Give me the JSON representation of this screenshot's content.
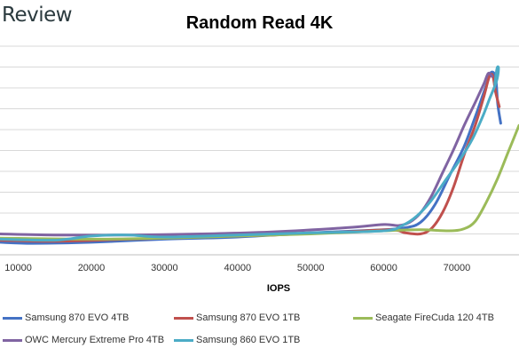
{
  "brand": {
    "logo_text": "Review"
  },
  "chart_data": {
    "type": "line",
    "title": "Random Read 4K",
    "xlabel": "IOPS",
    "ylabel": "",
    "xlim": [
      7500,
      78500
    ],
    "ylim": [
      0,
      10
    ],
    "x_ticks": [
      10000,
      20000,
      30000,
      40000,
      50000,
      60000,
      70000
    ],
    "y_tick_labels": [],
    "grid": {
      "horizontal": true,
      "vertical": false
    },
    "legend_position": "bottom",
    "series": [
      {
        "name": "Samsung 870 EVO 4TB",
        "color": "#4472c4",
        "points": [
          [
            7500,
            0.6
          ],
          [
            12000,
            0.55
          ],
          [
            20000,
            0.6
          ],
          [
            30000,
            0.75
          ],
          [
            40000,
            0.85
          ],
          [
            50000,
            1.05
          ],
          [
            60000,
            1.2
          ],
          [
            63000,
            1.3
          ],
          [
            65000,
            1.55
          ],
          [
            67000,
            2.4
          ],
          [
            69000,
            3.8
          ],
          [
            71000,
            5.2
          ],
          [
            72500,
            6.6
          ],
          [
            73500,
            7.6
          ],
          [
            74200,
            8.3
          ],
          [
            74700,
            8.75
          ],
          [
            75300,
            8.5
          ],
          [
            75600,
            7.2
          ],
          [
            76000,
            6.3
          ]
        ]
      },
      {
        "name": "Samsung 870 EVO 1TB",
        "color": "#c0504d",
        "points": [
          [
            7500,
            0.7
          ],
          [
            15000,
            0.65
          ],
          [
            25000,
            0.75
          ],
          [
            35000,
            0.85
          ],
          [
            45000,
            0.95
          ],
          [
            55000,
            1.1
          ],
          [
            61000,
            1.2
          ],
          [
            63000,
            1.05
          ],
          [
            65000,
            1.0
          ],
          [
            66500,
            1.25
          ],
          [
            68000,
            2.0
          ],
          [
            69500,
            3.2
          ],
          [
            71000,
            4.8
          ],
          [
            72500,
            6.2
          ],
          [
            73700,
            7.6
          ],
          [
            74400,
            8.5
          ],
          [
            74900,
            8.6
          ],
          [
            75300,
            7.8
          ],
          [
            75800,
            7.1
          ]
        ]
      },
      {
        "name": "Seagate FireCuda 120 4TB",
        "color": "#9bbb59",
        "points": [
          [
            7500,
            0.8
          ],
          [
            20000,
            0.75
          ],
          [
            30000,
            0.8
          ],
          [
            40000,
            0.9
          ],
          [
            50000,
            1.0
          ],
          [
            60000,
            1.15
          ],
          [
            65000,
            1.2
          ],
          [
            69000,
            1.15
          ],
          [
            71000,
            1.25
          ],
          [
            72500,
            1.6
          ],
          [
            74000,
            2.5
          ],
          [
            75500,
            3.6
          ],
          [
            77000,
            4.9
          ],
          [
            78500,
            6.2
          ]
        ]
      },
      {
        "name": "OWC Mercury Extreme Pro 4TB",
        "color": "#8064a2",
        "points": [
          [
            7500,
            1.0
          ],
          [
            15000,
            0.95
          ],
          [
            25000,
            0.95
          ],
          [
            35000,
            1.0
          ],
          [
            45000,
            1.1
          ],
          [
            55000,
            1.3
          ],
          [
            60000,
            1.45
          ],
          [
            62000,
            1.4
          ],
          [
            63500,
            1.55
          ],
          [
            65000,
            2.0
          ],
          [
            66500,
            2.8
          ],
          [
            68000,
            3.9
          ],
          [
            69500,
            5.0
          ],
          [
            71000,
            6.2
          ],
          [
            72500,
            7.3
          ],
          [
            73700,
            8.2
          ],
          [
            74300,
            8.7
          ],
          [
            74800,
            8.55
          ]
        ]
      },
      {
        "name": "Samsung 860 EVO 1TB",
        "color": "#4bacc6",
        "points": [
          [
            7500,
            0.75
          ],
          [
            15000,
            0.7
          ],
          [
            20000,
            0.9
          ],
          [
            25000,
            0.95
          ],
          [
            30000,
            0.85
          ],
          [
            40000,
            0.95
          ],
          [
            50000,
            1.05
          ],
          [
            60000,
            1.15
          ],
          [
            62500,
            1.4
          ],
          [
            64500,
            1.85
          ],
          [
            66500,
            2.6
          ],
          [
            68500,
            3.6
          ],
          [
            70500,
            4.6
          ],
          [
            72200,
            5.6
          ],
          [
            73500,
            6.6
          ],
          [
            74500,
            7.5
          ],
          [
            75400,
            8.3
          ],
          [
            75700,
            8.9
          ],
          [
            75500,
            8.95
          ],
          [
            75200,
            8.2
          ]
        ]
      }
    ]
  }
}
